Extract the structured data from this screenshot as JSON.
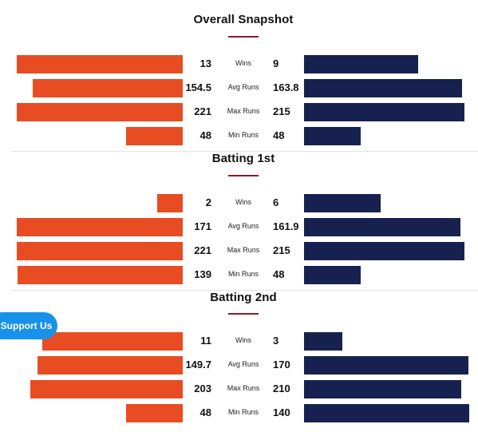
{
  "colors": {
    "left": "#e84c22",
    "right": "#17214f",
    "accent": "#8b1a2b",
    "button": "#1791ea"
  },
  "support_button": {
    "label": "Support Us"
  },
  "sections": [
    {
      "title": "Overall Snapshot",
      "rows": [
        {
          "label": "Wins",
          "left": "13",
          "right": "9",
          "left_val": 13,
          "right_val": 9
        },
        {
          "label": "Avg Runs",
          "left": "154.5",
          "right": "163.8",
          "left_val": 154.5,
          "right_val": 163.8
        },
        {
          "label": "Max Runs",
          "left": "221",
          "right": "215",
          "left_val": 221,
          "right_val": 215
        },
        {
          "label": "Min Runs",
          "left": "48",
          "right": "48",
          "left_val": 48,
          "right_val": 48
        }
      ]
    },
    {
      "title": "Batting 1st",
      "rows": [
        {
          "label": "Wins",
          "left": "2",
          "right": "6",
          "left_val": 2,
          "right_val": 6
        },
        {
          "label": "Avg Runs",
          "left": "171",
          "right": "161.9",
          "left_val": 171,
          "right_val": 161.9
        },
        {
          "label": "Max Runs",
          "left": "221",
          "right": "215",
          "left_val": 221,
          "right_val": 215
        },
        {
          "label": "Min Runs",
          "left": "139",
          "right": "48",
          "left_val": 139,
          "right_val": 48
        }
      ]
    },
    {
      "title": "Batting 2nd",
      "rows": [
        {
          "label": "Wins",
          "left": "11",
          "right": "3",
          "left_val": 11,
          "right_val": 3
        },
        {
          "label": "Avg Runs",
          "left": "149.7",
          "right": "170",
          "left_val": 149.7,
          "right_val": 170
        },
        {
          "label": "Max Runs",
          "left": "203",
          "right": "210",
          "left_val": 203,
          "right_val": 210
        },
        {
          "label": "Min Runs",
          "left": "48",
          "right": "140",
          "left_val": 48,
          "right_val": 140
        }
      ]
    }
  ]
}
